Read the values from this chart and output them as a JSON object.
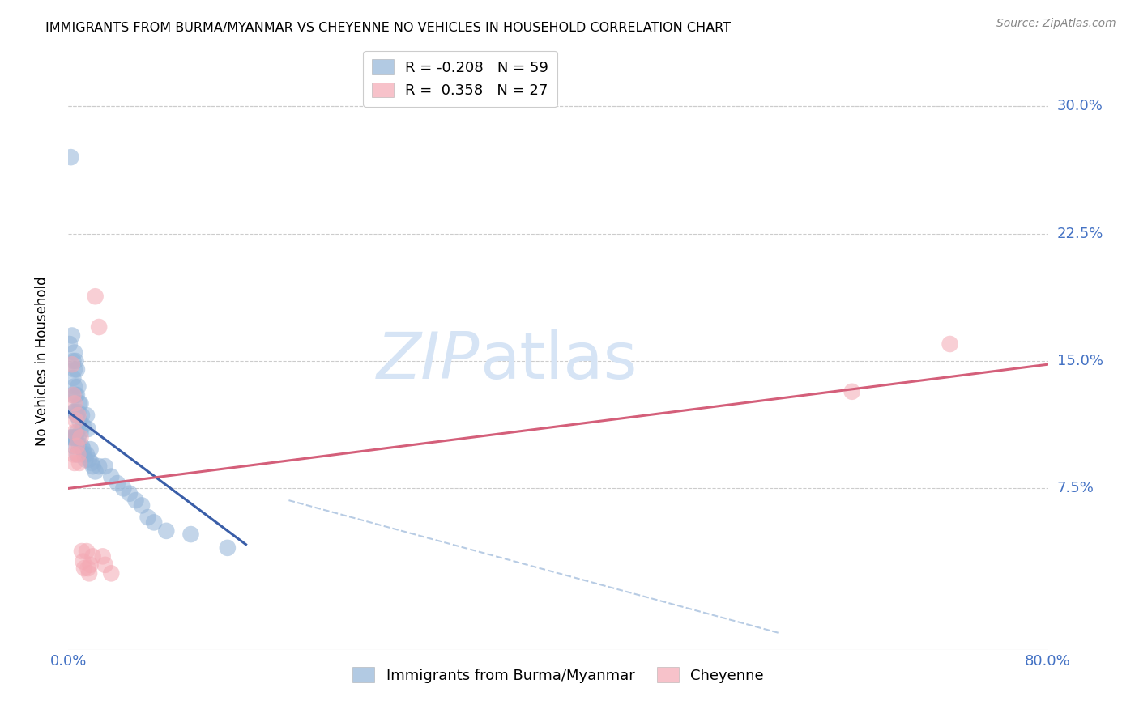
{
  "title": "IMMIGRANTS FROM BURMA/MYANMAR VS CHEYENNE NO VEHICLES IN HOUSEHOLD CORRELATION CHART",
  "source": "Source: ZipAtlas.com",
  "ylabel": "No Vehicles in Household",
  "ytick_labels": [
    "7.5%",
    "15.0%",
    "22.5%",
    "30.0%"
  ],
  "ytick_values": [
    0.075,
    0.15,
    0.225,
    0.3
  ],
  "xlim": [
    0.0,
    0.8
  ],
  "ylim": [
    -0.02,
    0.32
  ],
  "legend_line1": "R = -0.208   N = 59",
  "legend_line2": "R =  0.358   N = 27",
  "color_blue": "#92b4d8",
  "color_pink": "#f4a9b4",
  "color_blue_line": "#3a5ea8",
  "color_pink_line": "#d45f7a",
  "color_dashed": "#b8cce4",
  "color_axis_labels": "#4472c4",
  "watermark_zip": "ZIP",
  "watermark_atlas": "atlas",
  "watermark_color": "#d6e4f5",
  "blue_points_x": [
    0.001,
    0.002,
    0.002,
    0.003,
    0.003,
    0.003,
    0.004,
    0.004,
    0.004,
    0.004,
    0.005,
    0.005,
    0.005,
    0.005,
    0.005,
    0.006,
    0.006,
    0.006,
    0.006,
    0.007,
    0.007,
    0.007,
    0.007,
    0.007,
    0.008,
    0.008,
    0.008,
    0.009,
    0.009,
    0.009,
    0.01,
    0.01,
    0.011,
    0.011,
    0.012,
    0.012,
    0.013,
    0.014,
    0.015,
    0.015,
    0.016,
    0.017,
    0.018,
    0.019,
    0.02,
    0.022,
    0.025,
    0.03,
    0.035,
    0.04,
    0.045,
    0.05,
    0.055,
    0.06,
    0.065,
    0.07,
    0.08,
    0.1,
    0.13
  ],
  "blue_points_y": [
    0.16,
    0.27,
    0.105,
    0.165,
    0.13,
    0.105,
    0.15,
    0.14,
    0.12,
    0.1,
    0.155,
    0.145,
    0.135,
    0.12,
    0.105,
    0.15,
    0.13,
    0.12,
    0.105,
    0.145,
    0.13,
    0.118,
    0.108,
    0.095,
    0.135,
    0.12,
    0.105,
    0.125,
    0.115,
    0.1,
    0.125,
    0.108,
    0.118,
    0.1,
    0.112,
    0.098,
    0.095,
    0.092,
    0.118,
    0.095,
    0.11,
    0.092,
    0.098,
    0.09,
    0.088,
    0.085,
    0.088,
    0.088,
    0.082,
    0.078,
    0.075,
    0.072,
    0.068,
    0.065,
    0.058,
    0.055,
    0.05,
    0.048,
    0.04
  ],
  "pink_points_x": [
    0.003,
    0.004,
    0.004,
    0.005,
    0.005,
    0.005,
    0.006,
    0.007,
    0.008,
    0.008,
    0.009,
    0.01,
    0.011,
    0.012,
    0.013,
    0.015,
    0.016,
    0.017,
    0.018,
    0.02,
    0.022,
    0.025,
    0.028,
    0.03,
    0.035,
    0.64,
    0.72
  ],
  "pink_points_y": [
    0.148,
    0.13,
    0.095,
    0.125,
    0.108,
    0.09,
    0.115,
    0.1,
    0.118,
    0.095,
    0.09,
    0.105,
    0.038,
    0.032,
    0.028,
    0.038,
    0.028,
    0.025,
    0.03,
    0.035,
    0.188,
    0.17,
    0.035,
    0.03,
    0.025,
    0.132,
    0.16
  ],
  "blue_line_x": [
    0.0,
    0.145
  ],
  "blue_line_y": [
    0.12,
    0.042
  ],
  "pink_line_x": [
    0.0,
    0.8
  ],
  "pink_line_y": [
    0.075,
    0.148
  ],
  "dashed_line_x": [
    0.18,
    0.58
  ],
  "dashed_line_y": [
    0.068,
    -0.01
  ]
}
